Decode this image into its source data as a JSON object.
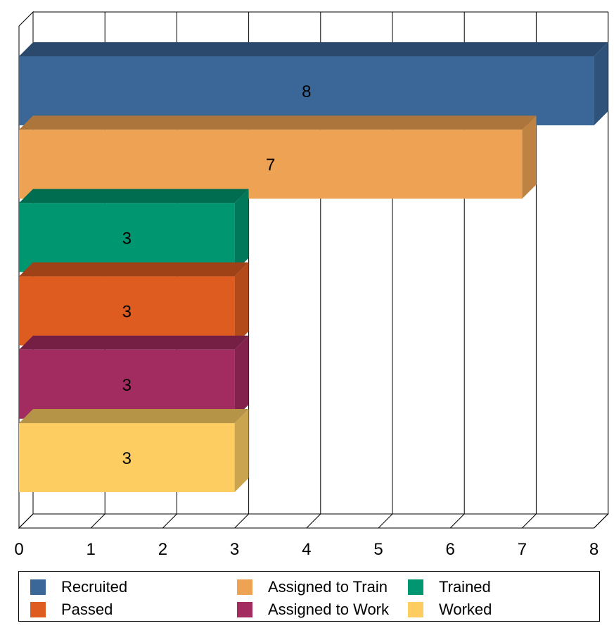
{
  "chart_data": {
    "type": "bar",
    "orientation": "horizontal",
    "three_d": true,
    "categories": [
      "Recruited",
      "Assigned to Train",
      "Trained",
      "Passed",
      "Assigned to Work",
      "Worked"
    ],
    "values": [
      8,
      7,
      3,
      3,
      3,
      3
    ],
    "data_labels": [
      "8",
      "7",
      "3",
      "3",
      "3",
      "3"
    ],
    "xlim": [
      0,
      8
    ],
    "x_ticks": [
      "0",
      "1",
      "2",
      "3",
      "4",
      "5",
      "6",
      "7",
      "8"
    ],
    "grid": "vertical",
    "legend_position": "bottom",
    "title": "",
    "xlabel": "",
    "ylabel": "",
    "colors": [
      "#3A6698",
      "#EEA354",
      "#00966F",
      "#DE5C20",
      "#A22B60",
      "#FDCD62"
    ]
  },
  "legend": {
    "items": [
      {
        "label": "Recruited",
        "color": "#3A6698"
      },
      {
        "label": "Assigned to Train",
        "color": "#EEA354"
      },
      {
        "label": "Trained",
        "color": "#00966F"
      },
      {
        "label": "Passed",
        "color": "#DE5C20"
      },
      {
        "label": "Assigned to Work",
        "color": "#A22B60"
      },
      {
        "label": "Worked",
        "color": "#FDCD62"
      }
    ]
  }
}
